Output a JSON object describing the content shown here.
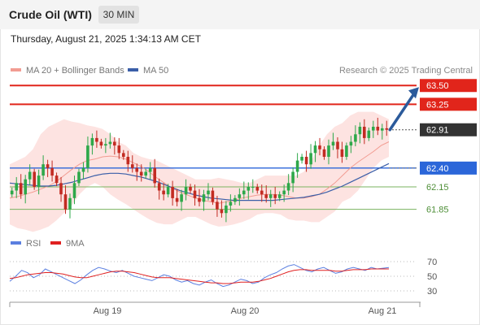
{
  "header": {
    "title": "Crude Oil (WTI)",
    "timeframe": "30 MIN"
  },
  "datetime": "Thursday, August 21, 2025 1:34:13 AM CET",
  "colors": {
    "bollinger_fill": "#fde3e1",
    "ma20": "#f29c92",
    "ma50": "#3a5ea8",
    "resistance": "#e1251b",
    "support_blue": "#2b66d9",
    "support_green": "#7ab35f",
    "candle_up": "#2ea84a",
    "candle_down": "#c22b22",
    "current_price_bg": "#333333",
    "arrow": "#2b5a9b",
    "rsi": "#5b7fe0",
    "rsi_ma": "#e02020"
  },
  "chart_data": [
    {
      "type": "candlestick",
      "legend": [
        {
          "label": "MA 20 + Bollinger Bands",
          "color": "#f29c92"
        },
        {
          "label": "MA 50",
          "color": "#3a5ea8"
        }
      ],
      "legend_position": "top-left",
      "attribution": "Research © 2025 Trading Central",
      "x_tick_labels": [
        "Aug 19",
        "Aug 20",
        "Aug 21"
      ],
      "y_range": [
        61.5,
        63.6
      ],
      "levels": [
        {
          "value": 63.5,
          "label": "63.50",
          "kind": "resistance"
        },
        {
          "value": 63.25,
          "label": "63.25",
          "kind": "resistance"
        },
        {
          "value": 62.91,
          "label": "62.91",
          "kind": "current"
        },
        {
          "value": 62.4,
          "label": "62.40",
          "kind": "pivot"
        },
        {
          "value": 62.15,
          "label": "62.15",
          "kind": "support"
        },
        {
          "value": 61.85,
          "label": "61.85",
          "kind": "support"
        }
      ],
      "arrow": {
        "from": 62.91,
        "to": 63.5,
        "direction": "up"
      },
      "closes": [
        62.1,
        62.2,
        62.05,
        62.25,
        62.35,
        62.15,
        62.3,
        62.45,
        62.4,
        62.3,
        62.2,
        62.05,
        61.85,
        62.0,
        62.2,
        62.35,
        62.4,
        62.7,
        62.8,
        62.75,
        62.7,
        62.72,
        62.75,
        62.7,
        62.6,
        62.55,
        62.45,
        62.4,
        62.35,
        62.3,
        62.35,
        62.4,
        62.2,
        62.1,
        62.05,
        62.15,
        62.0,
        61.95,
        62.05,
        62.15,
        62.1,
        62.0,
        61.95,
        62.05,
        62.1,
        61.95,
        61.85,
        61.8,
        61.9,
        61.95,
        62.0,
        62.05,
        62.1,
        62.15,
        62.15,
        62.1,
        62.05,
        62.0,
        62.05,
        62.0,
        62.05,
        62.1,
        62.2,
        62.35,
        62.5,
        62.55,
        62.45,
        62.6,
        62.7,
        62.65,
        62.55,
        62.7,
        62.75,
        62.65,
        62.55,
        62.7,
        62.75,
        62.85,
        62.95,
        62.8,
        62.9,
        62.95,
        62.9,
        62.93,
        62.91
      ],
      "ma20": [
        62.0,
        62.02,
        62.05,
        62.08,
        62.12,
        62.16,
        62.22,
        62.3,
        62.38,
        62.45,
        62.5,
        62.52,
        62.55,
        62.56,
        62.55,
        62.52,
        62.47,
        62.42,
        62.35,
        62.27,
        62.2,
        62.13,
        62.08,
        62.04,
        62.0,
        61.97,
        61.95,
        61.93,
        61.95,
        61.97,
        62.0,
        62.02,
        62.04,
        62.05,
        62.05,
        62.04,
        62.02,
        62.0,
        62.0,
        62.02,
        62.05,
        62.12,
        62.2,
        62.3,
        62.4,
        62.48,
        62.55,
        62.62,
        62.7,
        62.75
      ],
      "bb_upper": [
        62.45,
        62.5,
        62.55,
        62.65,
        62.85,
        62.95,
        63.0,
        63.05,
        63.02,
        63.0,
        62.97,
        62.95,
        62.92,
        62.85,
        62.75,
        62.7,
        62.6,
        62.55,
        62.52,
        62.5,
        62.45,
        62.4,
        62.35,
        62.3,
        62.25,
        62.25,
        62.25,
        62.27,
        62.25,
        62.23,
        62.2,
        62.2,
        62.25,
        62.3,
        62.3,
        62.3,
        62.3,
        62.3,
        62.35,
        62.5,
        62.7,
        62.85,
        62.95,
        63.0,
        63.1,
        63.15,
        63.15,
        63.15,
        63.1,
        63.05
      ],
      "bb_lower": [
        61.65,
        61.6,
        61.58,
        61.55,
        61.58,
        61.62,
        61.7,
        61.8,
        61.9,
        62.05,
        62.15,
        62.2,
        62.15,
        62.05,
        61.98,
        61.92,
        61.85,
        61.78,
        61.72,
        61.67,
        61.65,
        61.65,
        61.7,
        61.75,
        61.75,
        61.7,
        61.65,
        61.62,
        61.63,
        61.65,
        61.68,
        61.72,
        61.78,
        61.8,
        61.8,
        61.78,
        61.72,
        61.7,
        61.7,
        61.68,
        61.68,
        61.75,
        61.82,
        61.95,
        62.0,
        62.1,
        62.25,
        62.4,
        62.5,
        62.55
      ],
      "ma50": [
        62.2,
        62.19,
        62.18,
        62.17,
        62.16,
        62.16,
        62.17,
        62.19,
        62.21,
        62.24,
        62.27,
        62.3,
        62.32,
        62.33,
        62.33,
        62.32,
        62.3,
        62.28,
        62.25,
        62.22,
        62.18,
        62.14,
        62.1,
        62.07,
        62.04,
        62.02,
        62.0,
        61.99,
        61.98,
        61.97,
        61.97,
        61.97,
        61.97,
        61.97,
        61.97,
        61.98,
        61.99,
        62.0,
        62.01,
        62.03,
        62.05,
        62.08,
        62.12,
        62.16,
        62.21,
        62.26,
        62.31,
        62.36,
        62.41,
        62.46
      ]
    },
    {
      "type": "line",
      "legend": [
        {
          "label": "RSI",
          "color": "#5b7fe0"
        },
        {
          "label": "9MA",
          "color": "#e02020"
        }
      ],
      "legend_position": "top-left",
      "y_range": [
        20,
        80
      ],
      "y_tick_labels": [
        "70",
        "50",
        "30"
      ],
      "series": [
        {
          "name": "RSI",
          "values": [
            43,
            50,
            58,
            55,
            48,
            52,
            60,
            56,
            52,
            48,
            44,
            40,
            45,
            52,
            58,
            62,
            60,
            57,
            55,
            58,
            54,
            50,
            48,
            46,
            44,
            48,
            52,
            50,
            45,
            42,
            44,
            40,
            38,
            42,
            45,
            40,
            36,
            38,
            42,
            46,
            44,
            40,
            42,
            48,
            52,
            55,
            60,
            64,
            66,
            62,
            58,
            56,
            60,
            62,
            58,
            54,
            56,
            60,
            62,
            60,
            58,
            62,
            60,
            61,
            62
          ]
        },
        {
          "name": "9MA",
          "values": [
            47,
            48,
            50,
            52,
            53,
            54,
            55,
            55,
            54,
            53,
            51,
            49,
            48,
            48,
            50,
            52,
            54,
            56,
            57,
            57,
            56,
            55,
            53,
            51,
            49,
            48,
            48,
            48,
            47,
            46,
            45,
            44,
            43,
            42,
            41,
            41,
            40,
            40,
            41,
            42,
            42,
            42,
            43,
            45,
            47,
            50,
            53,
            56,
            58,
            59,
            59,
            58,
            58,
            58,
            58,
            57,
            57,
            58,
            59,
            59,
            59,
            60,
            60,
            60,
            60
          ]
        }
      ]
    }
  ]
}
